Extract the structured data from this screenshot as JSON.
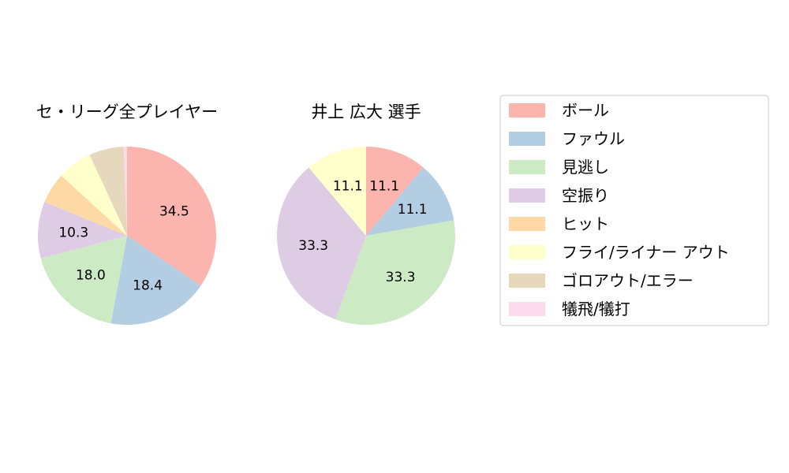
{
  "colors": {
    "ball": "#fbb4ae",
    "foul": "#b3cde3",
    "looking": "#ccebc5",
    "swinging": "#decbe4",
    "hit": "#fed9a6",
    "fly_liner_out": "#ffffcc",
    "grounder_out": "#e5d8bd",
    "sacrifice": "#fddaec"
  },
  "legend": {
    "items": [
      {
        "key": "ball",
        "label": "ボール"
      },
      {
        "key": "foul",
        "label": "ファウル"
      },
      {
        "key": "looking",
        "label": "見逃し"
      },
      {
        "key": "swinging",
        "label": "空振り"
      },
      {
        "key": "hit",
        "label": "ヒット"
      },
      {
        "key": "fly_liner_out",
        "label": "フライ/ライナー アウト"
      },
      {
        "key": "grounder_out",
        "label": "ゴロアウト/エラー"
      },
      {
        "key": "sacrifice",
        "label": "犠飛/犠打"
      }
    ]
  },
  "chart_data": [
    {
      "type": "pie",
      "title": "セ・リーグ全プレイヤー",
      "start_angle": "top, clockwise",
      "slices": [
        {
          "key": "ball",
          "value": 34.5,
          "label": "34.5"
        },
        {
          "key": "foul",
          "value": 18.4,
          "label": "18.4"
        },
        {
          "key": "looking",
          "value": 18.0,
          "label": "18.0"
        },
        {
          "key": "swinging",
          "value": 10.3,
          "label": "10.3"
        },
        {
          "key": "hit",
          "value": 5.6,
          "label": ""
        },
        {
          "key": "fly_liner_out",
          "value": 6.3,
          "label": ""
        },
        {
          "key": "grounder_out",
          "value": 6.3,
          "label": ""
        },
        {
          "key": "sacrifice",
          "value": 0.6,
          "label": ""
        }
      ]
    },
    {
      "type": "pie",
      "title": "井上 広大  選手",
      "start_angle": "top, clockwise",
      "slices": [
        {
          "key": "ball",
          "value": 11.1,
          "label": "11.1"
        },
        {
          "key": "foul",
          "value": 11.1,
          "label": "11.1"
        },
        {
          "key": "looking",
          "value": 33.3,
          "label": "33.3"
        },
        {
          "key": "swinging",
          "value": 33.3,
          "label": "33.3"
        },
        {
          "key": "fly_liner_out",
          "value": 11.1,
          "label": "11.1"
        }
      ]
    }
  ]
}
